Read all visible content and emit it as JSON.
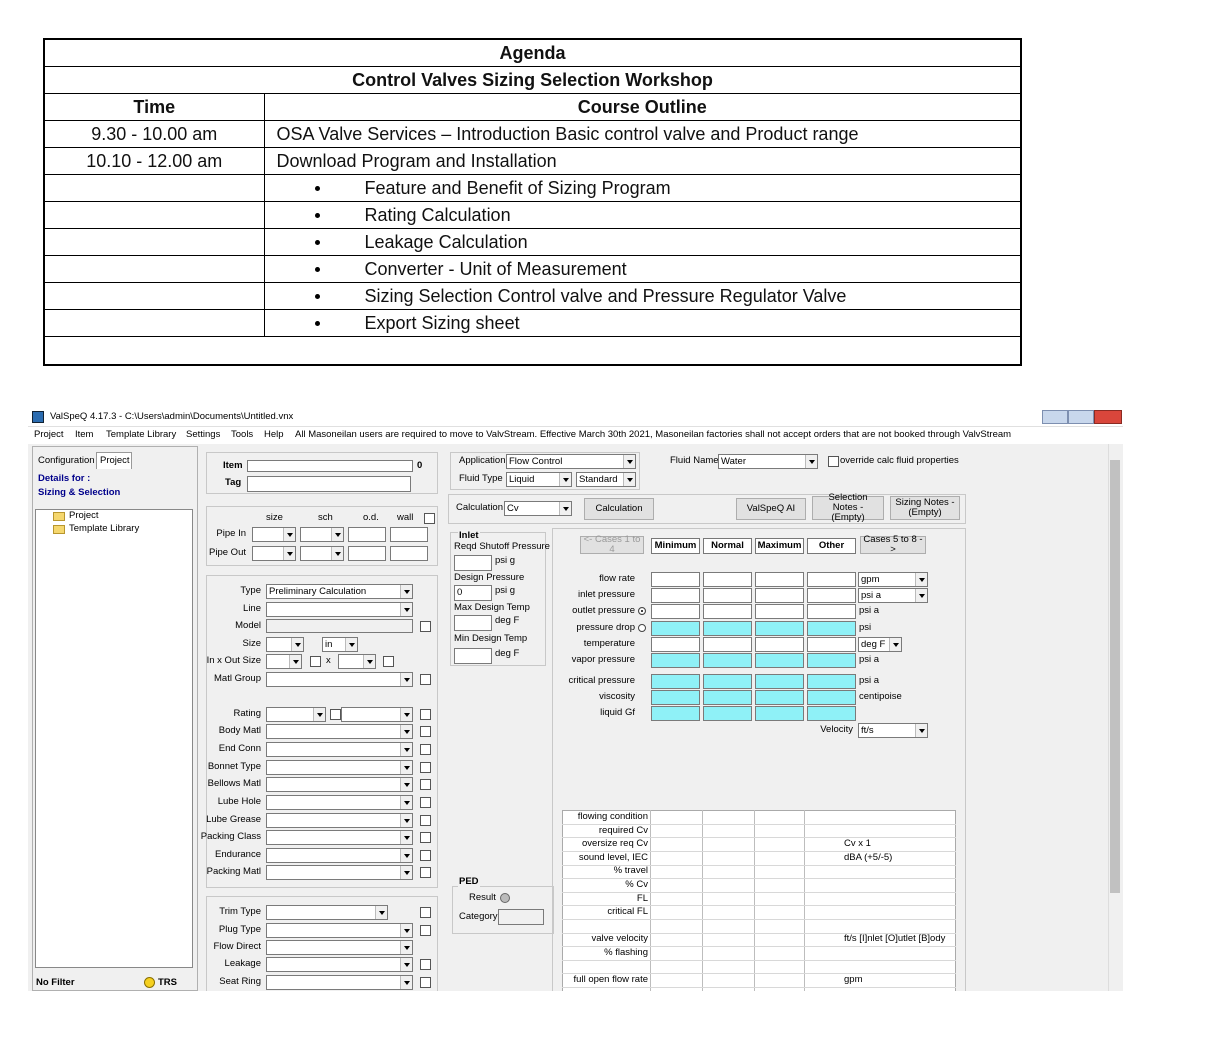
{
  "agenda": {
    "title": "Agenda",
    "subtitle": "Control Valves Sizing Selection Workshop",
    "headers": [
      "Time",
      "Course Outline"
    ],
    "rows": [
      [
        "9.30 - 10.00 am",
        "OSA Valve Services – Introduction Basic control valve and Product range"
      ],
      [
        "10.10 - 12.00 am",
        "Download Program and Installation"
      ]
    ],
    "bullets": [
      "Feature and Benefit of Sizing Program",
      "Rating Calculation",
      "Leakage Calculation",
      "Converter - Unit of Measurement",
      "Sizing Selection Control valve and Pressure Regulator Valve",
      "Export Sizing sheet"
    ]
  },
  "app": {
    "window_title": "ValSpeQ 4.17.3 - C:\\Users\\admin\\Documents\\Untitled.vnx",
    "menu": [
      "Project",
      "Item",
      "Template Library",
      "Settings",
      "Tools",
      "Help"
    ],
    "notice": "All Masoneilan users are required to move to ValvStream. Effective March 30th 2021, Masoneilan factories shall not accept orders that are not booked through ValvStream",
    "left": {
      "tabs": [
        "Configuration",
        "Project"
      ],
      "details_for": "Details for :",
      "details_value": "Sizing & Selection",
      "tree": [
        "Project",
        "Template Library"
      ],
      "filter": "No Filter",
      "trs": "TRS"
    },
    "item": {
      "item_label": "Item",
      "item_value": "0",
      "tag_label": "Tag"
    },
    "pipe": {
      "headers": [
        "size",
        "sch",
        "o.d.",
        "wall"
      ],
      "rows": [
        "Pipe In",
        "Pipe Out"
      ]
    },
    "spec": {
      "labels": [
        "Type",
        "Line",
        "Model",
        "Size",
        "In x Out Size",
        "Matl Group",
        "Rating",
        "Body Matl",
        "End Conn",
        "Bonnet Type",
        "Bellows Matl",
        "Lube Hole",
        "Lube Grease",
        "Packing Class",
        "Endurance",
        "Packing Matl"
      ],
      "type_value": "Preliminary Calculation",
      "size_unit": "in",
      "x": "x"
    },
    "trim": {
      "labels": [
        "Trim Type",
        "Plug Type",
        "Flow Direct",
        "Leakage",
        "Seat Ring"
      ]
    },
    "application": {
      "label": "Application",
      "value": "Flow Control",
      "fluid_type_label": "Fluid Type",
      "fluid_type": "Liquid",
      "standard": "Standard",
      "fluid_name_label": "Fluid Name",
      "fluid_name": "Water",
      "override": "override calc fluid properties"
    },
    "calc": {
      "label": "Calculation",
      "value": "Cv",
      "button": "Calculation",
      "ai": "ValSpeQ AI",
      "selection_notes": "Selection Notes - (Empty)",
      "sizing_notes": "Sizing Notes - (Empty)"
    },
    "inlet": {
      "title": "Inlet",
      "fields": [
        {
          "label": "Reqd Shutoff Pressure",
          "unit": "psi g"
        },
        {
          "label": "Design Pressure",
          "value": "0",
          "unit": "psi g"
        },
        {
          "label": "Max Design Temp",
          "unit": "deg F"
        },
        {
          "label": "Min Design Temp",
          "unit": "deg F"
        }
      ]
    },
    "ped": {
      "title": "PED",
      "result": "Result",
      "category": "Category"
    },
    "cases": {
      "prev": "<- Cases 1 to 4",
      "columns": [
        "Minimum",
        "Normal",
        "Maximum",
        "Other"
      ],
      "next": "Cases 5 to 8 ->",
      "rows": [
        {
          "label": "flow rate",
          "unit": "gpm"
        },
        {
          "label": "inlet pressure",
          "unit": "psi a"
        },
        {
          "label": "outlet pressure",
          "unit": "psi a"
        },
        {
          "label": "pressure drop",
          "unit": "psi"
        },
        {
          "label": "temperature",
          "unit": "deg F"
        },
        {
          "label": "vapor pressure",
          "unit": "psi a"
        },
        {
          "label": "critical pressure",
          "unit": "psi a"
        },
        {
          "label": "viscosity",
          "unit": "centipoise"
        },
        {
          "label": "liquid Gf"
        }
      ],
      "velocity_label": "Velocity",
      "velocity_unit": "ft/s"
    },
    "results": {
      "rows": [
        {
          "label": "flowing condition"
        },
        {
          "label": "required Cv"
        },
        {
          "label": "oversize req Cv",
          "unit": "Cv x 1"
        },
        {
          "label": "sound level, IEC",
          "unit": "dBA (+5/-5)"
        },
        {
          "label": "% travel"
        },
        {
          "label": "% Cv"
        },
        {
          "label": "FL"
        },
        {
          "label": "critical FL"
        },
        null,
        {
          "label": "valve velocity",
          "unit": "ft/s  [I]nlet [O]utlet [B]ody"
        },
        {
          "label": "% flashing"
        },
        null,
        {
          "label": "full open flow rate",
          "unit": "gpm"
        }
      ]
    }
  }
}
